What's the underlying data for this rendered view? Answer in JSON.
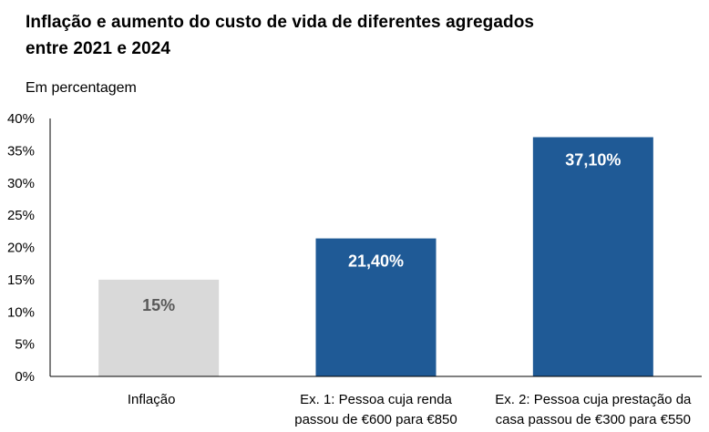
{
  "chart_data": {
    "type": "bar",
    "title_lines": [
      "Inflação e aumento do custo de vida de diferentes agregados",
      "entre 2021 e 2024"
    ],
    "subtitle": "Em percentagem",
    "ylim": [
      0,
      40
    ],
    "yticks": [
      {
        "value": 0,
        "label": "0%"
      },
      {
        "value": 5,
        "label": "5%"
      },
      {
        "value": 10,
        "label": "10%"
      },
      {
        "value": 15,
        "label": "15%"
      },
      {
        "value": 20,
        "label": "20%"
      },
      {
        "value": 25,
        "label": "25%"
      },
      {
        "value": 30,
        "label": "30%"
      },
      {
        "value": 35,
        "label": "35%"
      },
      {
        "value": 40,
        "label": "40%"
      }
    ],
    "categories": [
      [
        "Inflação"
      ],
      [
        "Ex. 1: Pessoa cuja renda",
        "passou de €600 para €850"
      ],
      [
        "Ex. 2: Pessoa cuja prestação da",
        "casa passou de €300 para €550"
      ]
    ],
    "values": [
      15,
      21.4,
      37.1
    ],
    "data_labels": [
      "15%",
      "21,40%",
      "37,10%"
    ],
    "bar_colors": [
      "#d9d9d9",
      "#1f5a96",
      "#1f5a96"
    ],
    "label_colors": [
      "#595959",
      "#ffffff",
      "#ffffff"
    ],
    "axis_color": "#000000"
  }
}
